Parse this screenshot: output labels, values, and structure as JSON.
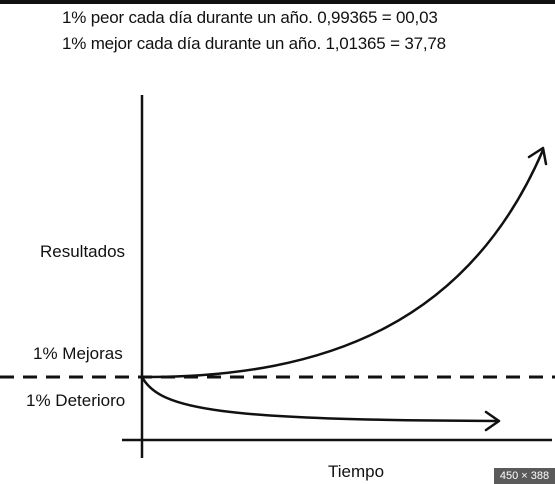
{
  "formulas": {
    "worse": "1% peor cada día durante un año.  0,99365 = 00,03",
    "better": "1% mejor cada día durante un año.   1,01365 = 37,78"
  },
  "labels": {
    "results_axis": "Resultados",
    "improvements": "1% Mejoras",
    "deterioration": "1% Deterioro",
    "time_axis": "Tiempo"
  },
  "badge": {
    "size_text": "450 × 388"
  },
  "colors": {
    "ink": "#111111",
    "background": "#ffffff",
    "badge": "#5a5a5a"
  }
}
